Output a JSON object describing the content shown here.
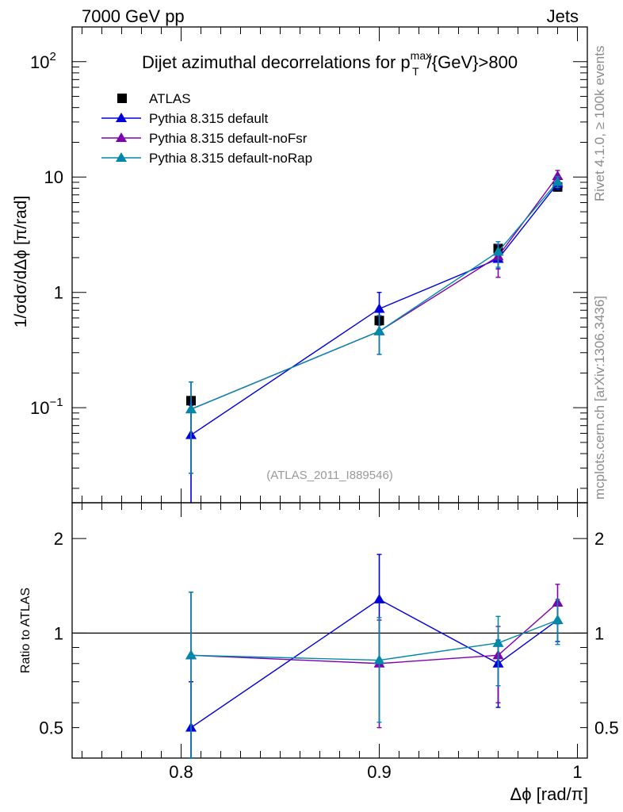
{
  "header": {
    "left": "7000 GeV pp",
    "right": "Jets"
  },
  "side_labels": {
    "top": "Rivet 4.1.0, ≥ 100k events",
    "bottom": "mcplots.cern.ch [arXiv:1306.3436]"
  },
  "watermark": "(ATLAS_2011_I889546)",
  "colors": {
    "atlas": "#000000",
    "default": "#0000dd",
    "noFsr": "#8000b0",
    "noRap": "#0088aa",
    "reference_line": "#000000"
  },
  "chart_data": [
    {
      "type": "line",
      "title": "Dijet azimuthal decorrelations for p",
      "title_sup": "max",
      "title_sub": "T",
      "title_tail": "/{GeV}>800",
      "xlabel": "Δϕ [rad/π]",
      "ylabel": "1/σdσ/dΔϕ [π/rad]",
      "yscale": "log",
      "xlim": [
        0.745,
        1.005
      ],
      "ylim": [
        0.015,
        200
      ],
      "xticks": [
        0.8,
        0.9,
        1.0
      ],
      "xtick_labels": [
        "0.8",
        "0.9",
        "1"
      ],
      "ytick_labels": [
        {
          "value": 100,
          "base": "10",
          "exp": "2"
        },
        {
          "value": 10,
          "base": "10",
          "exp": ""
        },
        {
          "value": 1,
          "base": "1",
          "exp": ""
        },
        {
          "value": 0.1,
          "base": "10",
          "exp": "−1"
        }
      ],
      "legend": [
        "ATLAS",
        "Pythia 8.315 default",
        "Pythia 8.315 default-noFsr",
        "Pythia 8.315 default-noRap"
      ],
      "legend_position": "top-left",
      "x": [
        0.805,
        0.9,
        0.96,
        0.99
      ],
      "series": [
        {
          "name": "ATLAS",
          "marker": "square",
          "values": [
            0.115,
            0.57,
            2.4,
            8.2
          ],
          "err_low": [
            0.01,
            0.05,
            0.2,
            0.6
          ],
          "err_high": [
            0.01,
            0.05,
            0.2,
            0.6
          ]
        },
        {
          "name": "Pythia 8.315 default",
          "marker": "triangle",
          "values": [
            0.058,
            0.72,
            1.95,
            8.8
          ],
          "err_low": [
            0.058,
            0.25,
            0.35,
            1.0
          ],
          "err_high": [
            0.05,
            0.28,
            0.35,
            1.0
          ]
        },
        {
          "name": "Pythia 8.315 default-noFsr",
          "marker": "triangle",
          "values": [
            0.097,
            0.46,
            2.05,
            10.2
          ],
          "err_low": [
            0.07,
            0.17,
            0.7,
            1.2
          ],
          "err_high": [
            0.07,
            0.17,
            0.55,
            1.2
          ]
        },
        {
          "name": "Pythia 8.315 default-noRap",
          "marker": "triangle",
          "values": [
            0.097,
            0.46,
            2.25,
            9.1
          ],
          "err_low": [
            0.07,
            0.17,
            0.6,
            1.0
          ],
          "err_high": [
            0.07,
            0.17,
            0.5,
            1.0
          ]
        }
      ]
    },
    {
      "type": "line",
      "title": "",
      "xlabel": "Δϕ [rad/π]",
      "ylabel": "Ratio to ATLAS",
      "yscale": "log",
      "xlim": [
        0.745,
        1.005
      ],
      "ylim": [
        0.4,
        2.6
      ],
      "reference_value": 1,
      "ytick_labels": [
        {
          "value": 2,
          "label": "2"
        },
        {
          "value": 1,
          "label": "1"
        },
        {
          "value": 0.5,
          "label": "0.5"
        }
      ],
      "x": [
        0.805,
        0.9,
        0.96,
        0.99
      ],
      "series": [
        {
          "name": "Pythia 8.315 default",
          "values": [
            0.5,
            1.28,
            0.8,
            1.1
          ],
          "err_low": [
            0.2,
            0.48,
            0.22,
            0.16
          ],
          "err_high": [
            0.2,
            0.5,
            0.15,
            0.15
          ]
        },
        {
          "name": "Pythia 8.315 default-noFsr",
          "values": [
            0.85,
            0.8,
            0.85,
            1.25
          ],
          "err_low": [
            0.45,
            0.3,
            0.25,
            0.18
          ],
          "err_high": [
            0.5,
            0.3,
            0.2,
            0.18
          ]
        },
        {
          "name": "Pythia 8.315 default-noRap",
          "values": [
            0.85,
            0.82,
            0.93,
            1.1
          ],
          "err_low": [
            0.45,
            0.3,
            0.25,
            0.18
          ],
          "err_high": [
            0.5,
            0.3,
            0.2,
            0.18
          ]
        }
      ]
    }
  ]
}
